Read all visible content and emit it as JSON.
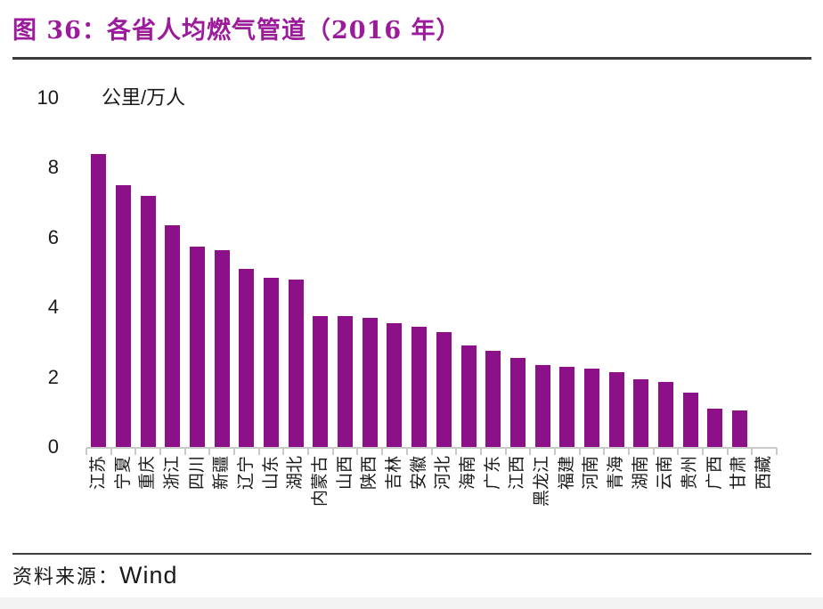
{
  "figure": {
    "title": "图 36：各省人均燃气管道（2016 年）"
  },
  "chart_data": {
    "type": "bar",
    "title": "各省人均燃气管道（2016 年）",
    "xlabel": "",
    "ylabel": "公里/万人",
    "ylim": [
      0,
      10
    ],
    "yticks": [
      0,
      2,
      4,
      6,
      8,
      10
    ],
    "grid": false,
    "legend": "none",
    "bar_color": "#8C1188",
    "categories": [
      "江苏",
      "宁夏",
      "重庆",
      "浙江",
      "四川",
      "新疆",
      "辽宁",
      "山东",
      "湖北",
      "内蒙古",
      "山西",
      "陕西",
      "吉林",
      "安徽",
      "河北",
      "海南",
      "广东",
      "江西",
      "黑龙江",
      "福建",
      "河南",
      "青海",
      "湖南",
      "云南",
      "贵州",
      "广西",
      "甘肃",
      "西藏"
    ],
    "values": [
      8.4,
      7.5,
      7.2,
      6.35,
      5.75,
      5.65,
      5.1,
      4.85,
      4.8,
      3.75,
      3.75,
      3.7,
      3.55,
      3.45,
      3.3,
      2.9,
      2.75,
      2.55,
      2.35,
      2.3,
      2.25,
      2.15,
      1.95,
      1.85,
      1.55,
      1.1,
      1.05,
      0
    ]
  },
  "footer": {
    "source_label": "资料来源：",
    "source_value": "Wind"
  },
  "colors": {
    "title_text": "#9B1B9B",
    "bar": "#8C1188",
    "axis_line": "#C9C9C9",
    "axis_text": "#1A1A1A",
    "divider": "#3D3D3D",
    "bottom_band": "#F3F3F3"
  }
}
